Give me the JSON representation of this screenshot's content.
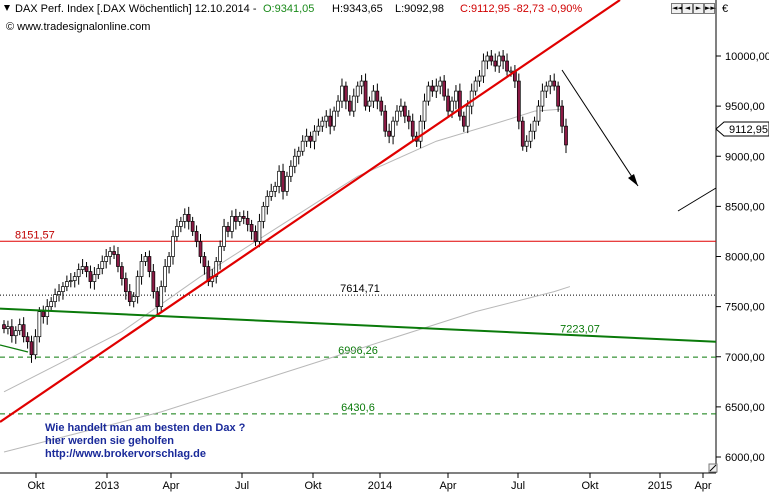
{
  "header": {
    "title": "DAX Perf. Index [.DAX  Wöchentlich] 12.10.2014 - ",
    "open": "O:9341,05",
    "high": "H:9343,65",
    "low": "L:9092,98",
    "close": "C:9112,95 -82,73 -0,90%",
    "copyright": "© www.tradesignalonline.com",
    "currency": "€",
    "last_price_tag": "9112,95"
  },
  "toolbar": {
    "buttons": [
      "◄◄",
      "◄",
      "►",
      "►►"
    ]
  },
  "colors": {
    "up": "#ffffff",
    "down": "#8b1a45",
    "trend": "#e00000",
    "resistance": "#e00000",
    "support_green": "#0a7a0a",
    "promo": "#1a2a9a"
  },
  "promo": {
    "line1": "Wie handelt man am besten  den Dax ?",
    "line2": "hier werden sie geholfen",
    "line3": "http://www.brokervorschlag.de"
  },
  "chart_data": {
    "type": "candlestick",
    "yaxis": {
      "ticks": [
        "6000,00",
        "6500,00",
        "7000,00",
        "7500,00",
        "8000,00",
        "8500,00",
        "9000,00",
        "9500,00",
        "10000,00"
      ],
      "range": [
        5940,
        10400
      ]
    },
    "xaxis": {
      "ticks": [
        "Okt",
        "2013",
        "Apr",
        "Jul",
        "Okt",
        "2014",
        "Apr",
        "Jul",
        "Okt",
        "2015",
        "Apr"
      ]
    },
    "levels": [
      {
        "label": "8151,57",
        "value": 8151.57
      },
      {
        "label": "7614,71",
        "value": 7614.71
      },
      {
        "label": "7223,07",
        "value": 7223.07
      },
      {
        "label": "6996,26",
        "value": 6996.26
      },
      {
        "label": "6430,6",
        "value": 6430.6
      }
    ],
    "closes": [
      7280,
      7300,
      7210,
      7260,
      7320,
      7200,
      7150,
      7020,
      7200,
      7450,
      7400,
      7500,
      7550,
      7620,
      7650,
      7700,
      7750,
      7760,
      7800,
      7870,
      7900,
      7850,
      7750,
      7820,
      7880,
      7950,
      8000,
      8050,
      8020,
      7900,
      7780,
      7650,
      7550,
      7600,
      7800,
      7950,
      8000,
      7850,
      7650,
      7500,
      7700,
      7900,
      8000,
      8200,
      8300,
      8350,
      8420,
      8350,
      8250,
      8150,
      8000,
      7900,
      7750,
      7800,
      7950,
      8100,
      8300,
      8250,
      8400,
      8350,
      8400,
      8380,
      8320,
      8250,
      8150,
      8350,
      8500,
      8600,
      8650,
      8700,
      8850,
      8650,
      8800,
      8900,
      9000,
      9050,
      9150,
      9200,
      9150,
      9250,
      9300,
      9350,
      9400,
      9300,
      9450,
      9550,
      9700,
      9550,
      9450,
      9600,
      9700,
      9750,
      9500,
      9550,
      9650,
      9550,
      9450,
      9250,
      9200,
      9350,
      9450,
      9500,
      9400,
      9350,
      9200,
      9150,
      9350,
      9550,
      9700,
      9650,
      9700,
      9750,
      9600,
      9450,
      9550,
      9650,
      9400,
      9300,
      9500,
      9650,
      9750,
      9800,
      9950,
      10000,
      9950,
      9900,
      10000,
      9950,
      9850,
      9850,
      9750,
      9350,
      9100,
      9150,
      9250,
      9350,
      9500,
      9650,
      9700,
      9750,
      9700,
      9500,
      9300,
      9112.95
    ],
    "sma": [
      {
        "name": "",
        "x": [
          0,
          40,
          80,
          120,
          140,
          144
        ],
        "y": [
          6050,
          6450,
          6950,
          7450,
          7650,
          7700
        ]
      },
      {
        "name": "",
        "x": [
          0,
          30,
          50,
          70,
          90,
          110,
          127,
          135,
          142
        ],
        "y": [
          6650,
          7250,
          7800,
          8300,
          8800,
          9150,
          9350,
          9450,
          9470
        ]
      }
    ],
    "trendlines": [
      {
        "name": "uptrend",
        "from": [
          "2012-09",
          6350
        ],
        "to": [
          "2014-11",
          10500
        ]
      },
      {
        "name": "green-support",
        "from": [
          "2012-09",
          7480
        ],
        "to": [
          "2015-04",
          7150
        ]
      }
    ]
  }
}
